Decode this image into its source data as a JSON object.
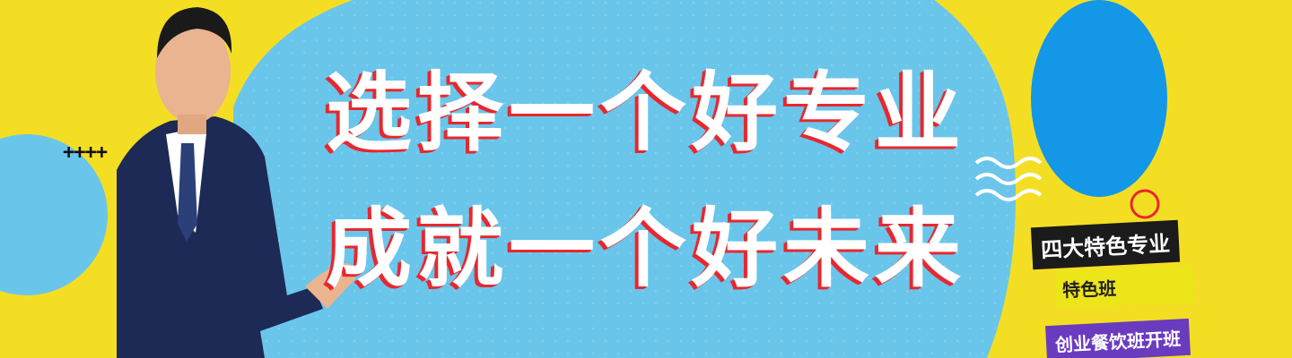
{
  "banner": {
    "headline_line1": "选择一个好专业",
    "headline_line2": "成就一个好未来",
    "plus_marks": "++++",
    "tag_main": "四大特色专业",
    "tag_sub": "特色班",
    "tag_course": "创业餐饮班开班"
  },
  "colors": {
    "background_yellow": "#f4de24",
    "sky_blue": "#6ac5ea",
    "deep_blue": "#1497e6",
    "accent_red": "#e8272e",
    "tag_dark": "#1b1b1b",
    "tag_purple": "#6a3bbf"
  },
  "icons": {
    "wave": "wave-lines-icon",
    "ring": "red-ring-icon"
  }
}
